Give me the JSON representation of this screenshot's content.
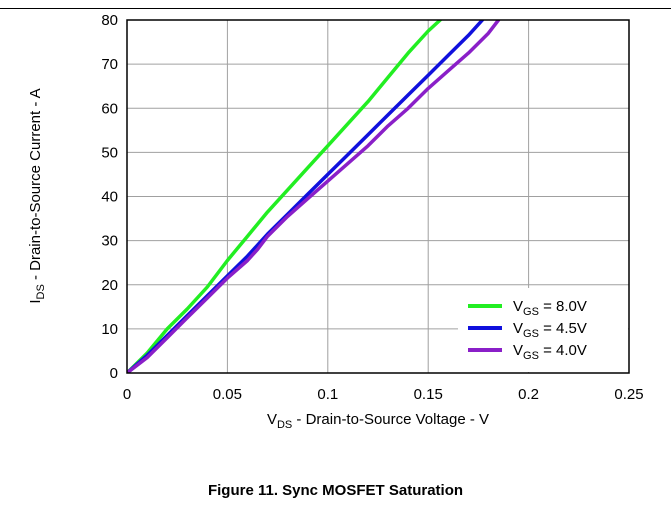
{
  "caption": "Figure 11. Sync MOSFET Saturation",
  "chart_data": {
    "type": "line",
    "title": "",
    "xlabel": {
      "main": "V",
      "sub": "DS",
      "rest": " - Drain-to-Source Voltage - V"
    },
    "ylabel": {
      "main": "I",
      "sub": "DS",
      "rest": " - Drain-to-Source Current - A"
    },
    "xlim": [
      0,
      0.25
    ],
    "ylim": [
      0,
      80
    ],
    "xticks": [
      0,
      0.05,
      0.1,
      0.15,
      0.2,
      0.25
    ],
    "xtick_labels": [
      "0",
      "0.05",
      "0.1",
      "0.15",
      "0.2",
      "0.25"
    ],
    "yticks": [
      0,
      10,
      20,
      30,
      40,
      50,
      60,
      70,
      80
    ],
    "ytick_labels": [
      "0",
      "10",
      "20",
      "30",
      "40",
      "50",
      "60",
      "70",
      "80"
    ],
    "grid": true,
    "legend_position": "bottom-right",
    "series": [
      {
        "legend_main": "V",
        "legend_sub": "GS",
        "legend_rest": " = 8.0V",
        "color": "#22ee22",
        "x": [
          0,
          0.01,
          0.02,
          0.03,
          0.04,
          0.05,
          0.06,
          0.07,
          0.08,
          0.09,
          0.1,
          0.11,
          0.12,
          0.13,
          0.14,
          0.15,
          0.156
        ],
        "y": [
          0,
          4.5,
          10,
          14.5,
          19.5,
          25.5,
          31,
          36.5,
          41.5,
          46.5,
          51.5,
          56.5,
          61.5,
          67,
          72.5,
          77.5,
          80
        ]
      },
      {
        "legend_main": "V",
        "legend_sub": "GS",
        "legend_rest": " = 4.5V",
        "color": "#1010dd",
        "x": [
          0,
          0.01,
          0.02,
          0.03,
          0.04,
          0.05,
          0.06,
          0.07,
          0.08,
          0.09,
          0.1,
          0.11,
          0.12,
          0.13,
          0.14,
          0.15,
          0.16,
          0.17,
          0.177
        ],
        "y": [
          0,
          4,
          8.5,
          13,
          17.5,
          22,
          26.5,
          31.5,
          36,
          40.5,
          45,
          49.5,
          54,
          58.5,
          63,
          67.5,
          72,
          76.5,
          80
        ]
      },
      {
        "legend_main": "V",
        "legend_sub": "GS",
        "legend_rest": " = 4.0V",
        "color": "#8a1fc8",
        "x": [
          0,
          0.01,
          0.02,
          0.03,
          0.04,
          0.05,
          0.06,
          0.065,
          0.07,
          0.08,
          0.09,
          0.1,
          0.11,
          0.12,
          0.13,
          0.14,
          0.15,
          0.16,
          0.17,
          0.18,
          0.185
        ],
        "y": [
          0,
          3.5,
          8,
          12.5,
          17,
          21.5,
          25.5,
          28,
          31,
          35.5,
          39.5,
          43.5,
          47.5,
          51.5,
          56,
          60,
          64.5,
          68.5,
          72.5,
          77,
          80
        ]
      }
    ]
  }
}
